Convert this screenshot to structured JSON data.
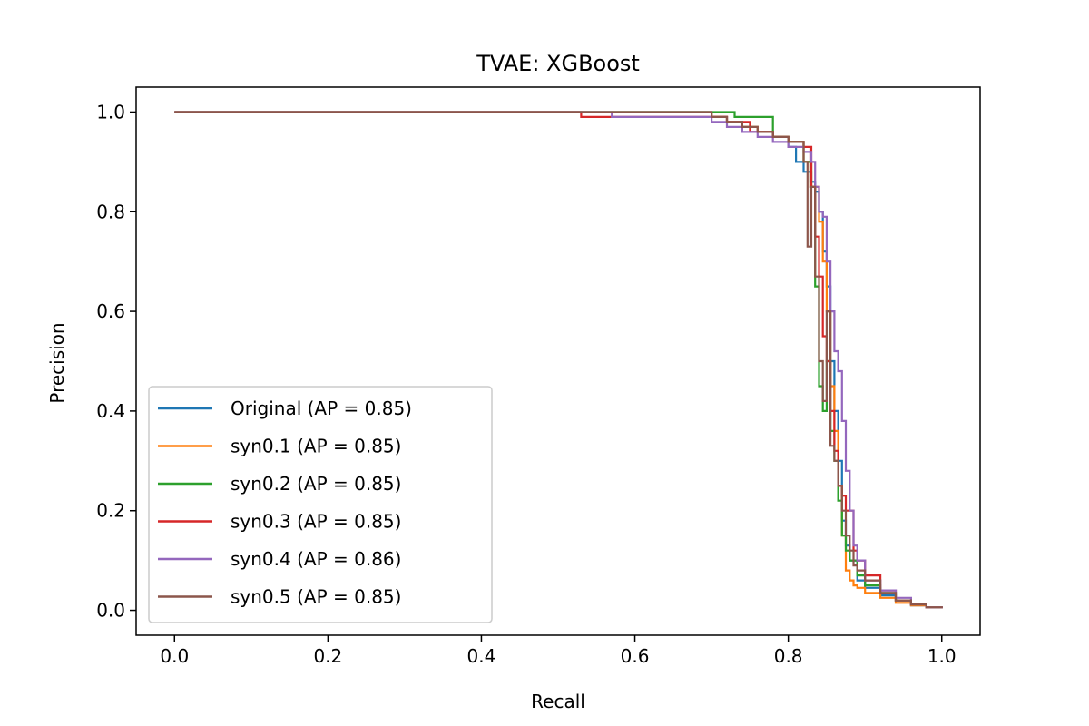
{
  "chart_data": {
    "type": "line",
    "title": "TVAE: XGBoost",
    "xlabel": "Recall",
    "ylabel": "Precision",
    "xlim": [
      -0.05,
      1.05
    ],
    "ylim": [
      -0.05,
      1.05
    ],
    "xticks": [
      "0.0",
      "0.2",
      "0.4",
      "0.6",
      "0.8",
      "1.0"
    ],
    "yticks": [
      "0.0",
      "0.2",
      "0.4",
      "0.6",
      "0.8",
      "1.0"
    ],
    "grid": false,
    "legend_position": "lower-left",
    "series": [
      {
        "name": "Original (AP = 0.85)",
        "color": "#1f77b4",
        "x": [
          0.0,
          0.6,
          0.7,
          0.72,
          0.74,
          0.76,
          0.78,
          0.8,
          0.81,
          0.82,
          0.83,
          0.835,
          0.84,
          0.845,
          0.85,
          0.855,
          0.86,
          0.865,
          0.87,
          0.875,
          0.88,
          0.89,
          0.9,
          0.92,
          0.94,
          0.96,
          0.98,
          1.0
        ],
        "y": [
          1.0,
          1.0,
          0.99,
          0.98,
          0.97,
          0.96,
          0.95,
          0.93,
          0.9,
          0.88,
          0.86,
          0.84,
          0.8,
          0.72,
          0.65,
          0.5,
          0.4,
          0.3,
          0.18,
          0.13,
          0.1,
          0.06,
          0.045,
          0.03,
          0.02,
          0.01,
          0.006,
          0.004
        ]
      },
      {
        "name": "syn0.1 (AP = 0.85)",
        "color": "#ff7f0e",
        "x": [
          0.0,
          0.62,
          0.7,
          0.72,
          0.74,
          0.76,
          0.78,
          0.8,
          0.82,
          0.83,
          0.84,
          0.845,
          0.85,
          0.855,
          0.86,
          0.865,
          0.87,
          0.875,
          0.88,
          0.885,
          0.89,
          0.9,
          0.92,
          0.94,
          0.96,
          0.98,
          1.0
        ],
        "y": [
          1.0,
          1.0,
          0.99,
          0.98,
          0.97,
          0.96,
          0.95,
          0.94,
          0.9,
          0.85,
          0.78,
          0.7,
          0.6,
          0.45,
          0.36,
          0.25,
          0.15,
          0.08,
          0.06,
          0.05,
          0.045,
          0.035,
          0.025,
          0.015,
          0.01,
          0.006,
          0.004
        ]
      },
      {
        "name": "syn0.2 (AP = 0.85)",
        "color": "#2ca02c",
        "x": [
          0.0,
          0.65,
          0.73,
          0.77,
          0.78,
          0.8,
          0.82,
          0.83,
          0.835,
          0.84,
          0.845,
          0.85,
          0.855,
          0.86,
          0.865,
          0.87,
          0.875,
          0.88,
          0.89,
          0.9,
          0.92,
          0.94,
          0.96,
          0.98,
          1.0
        ],
        "y": [
          1.0,
          1.0,
          0.99,
          0.99,
          0.95,
          0.94,
          0.9,
          0.85,
          0.65,
          0.45,
          0.4,
          0.5,
          0.36,
          0.3,
          0.22,
          0.15,
          0.12,
          0.1,
          0.07,
          0.05,
          0.035,
          0.02,
          0.012,
          0.006,
          0.004
        ]
      },
      {
        "name": "syn0.3 (AP = 0.85)",
        "color": "#d62728",
        "x": [
          0.0,
          0.53,
          0.58,
          0.7,
          0.72,
          0.75,
          0.78,
          0.8,
          0.82,
          0.83,
          0.835,
          0.84,
          0.845,
          0.85,
          0.855,
          0.86,
          0.865,
          0.87,
          0.875,
          0.88,
          0.885,
          0.89,
          0.9,
          0.92,
          0.94,
          0.96,
          0.98,
          1.0
        ],
        "y": [
          1.0,
          0.99,
          0.99,
          0.99,
          0.98,
          0.96,
          0.95,
          0.94,
          0.93,
          0.85,
          0.75,
          0.67,
          0.55,
          0.5,
          0.4,
          0.32,
          0.25,
          0.23,
          0.2,
          0.2,
          0.12,
          0.1,
          0.07,
          0.04,
          0.02,
          0.012,
          0.006,
          0.004
        ]
      },
      {
        "name": "syn0.4 (AP = 0.86)",
        "color": "#9467bd",
        "x": [
          0.0,
          0.57,
          0.69,
          0.7,
          0.72,
          0.74,
          0.76,
          0.78,
          0.8,
          0.82,
          0.83,
          0.835,
          0.84,
          0.845,
          0.85,
          0.855,
          0.86,
          0.865,
          0.87,
          0.875,
          0.88,
          0.885,
          0.89,
          0.9,
          0.92,
          0.94,
          0.96,
          0.98,
          1.0
        ],
        "y": [
          1.0,
          0.99,
          0.99,
          0.98,
          0.97,
          0.96,
          0.95,
          0.94,
          0.93,
          0.92,
          0.9,
          0.85,
          0.8,
          0.79,
          0.7,
          0.6,
          0.52,
          0.48,
          0.38,
          0.28,
          0.2,
          0.13,
          0.1,
          0.06,
          0.04,
          0.025,
          0.012,
          0.006,
          0.004
        ]
      },
      {
        "name": "syn0.5 (AP = 0.85)",
        "color": "#8c564b",
        "x": [
          0.0,
          0.6,
          0.7,
          0.72,
          0.74,
          0.76,
          0.78,
          0.8,
          0.82,
          0.825,
          0.83,
          0.835,
          0.84,
          0.845,
          0.85,
          0.855,
          0.86,
          0.865,
          0.87,
          0.875,
          0.88,
          0.885,
          0.89,
          0.9,
          0.92,
          0.94,
          0.96,
          0.98,
          1.0
        ],
        "y": [
          1.0,
          1.0,
          0.99,
          0.98,
          0.97,
          0.96,
          0.95,
          0.94,
          0.9,
          0.73,
          0.85,
          0.67,
          0.5,
          0.42,
          0.6,
          0.33,
          0.3,
          0.25,
          0.2,
          0.15,
          0.12,
          0.09,
          0.08,
          0.06,
          0.035,
          0.02,
          0.012,
          0.006,
          0.004
        ]
      }
    ]
  }
}
